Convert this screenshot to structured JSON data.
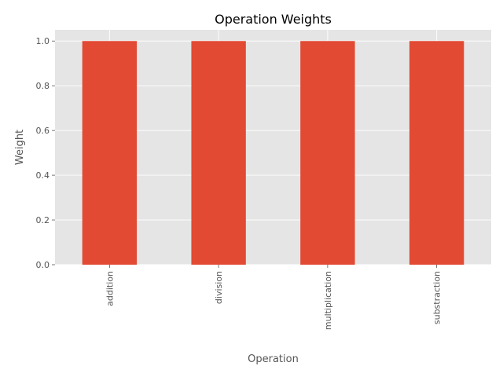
{
  "chart_data": {
    "type": "bar",
    "title": "Operation Weights",
    "xlabel": "Operation",
    "ylabel": "Weight",
    "categories": [
      "addition",
      "division",
      "multiplication",
      "substraction"
    ],
    "values": [
      1.0,
      1.0,
      1.0,
      1.0
    ],
    "ylim": [
      0,
      1.05
    ],
    "yticks": [
      "0.0",
      "0.2",
      "0.4",
      "0.6",
      "0.8",
      "1.0"
    ],
    "grid": true,
    "legend": "none",
    "colors": {
      "bar": "#E24A33",
      "plot_bg": "#E5E5E5",
      "grid": "#FFFFFF"
    }
  }
}
